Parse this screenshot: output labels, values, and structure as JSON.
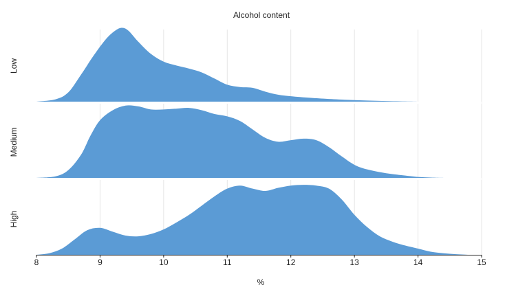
{
  "chart_data": {
    "type": "area",
    "title": "Alcohol content",
    "xlabel": "%",
    "ylabel": "",
    "xlim": [
      8,
      15
    ],
    "x_ticks": [
      8,
      9,
      10,
      11,
      12,
      13,
      14,
      15
    ],
    "x_tick_labels": [
      "8",
      "9",
      "10",
      "11",
      "12",
      "13",
      "14",
      "15"
    ],
    "grid": true,
    "fill_color": "#5b9bd5",
    "rows": [
      "Low",
      "Medium",
      "High"
    ],
    "series": [
      {
        "name": "Low",
        "x": [
          8.0,
          8.3,
          8.5,
          8.7,
          8.9,
          9.1,
          9.25,
          9.35,
          9.45,
          9.6,
          9.8,
          10.0,
          10.2,
          10.4,
          10.6,
          10.8,
          11.0,
          11.2,
          11.4,
          11.6,
          11.8,
          12.0,
          12.3,
          12.6,
          13.0,
          13.4,
          13.8,
          14.0
        ],
        "y": [
          0.0,
          0.03,
          0.12,
          0.35,
          0.6,
          0.82,
          0.93,
          0.96,
          0.92,
          0.78,
          0.62,
          0.52,
          0.47,
          0.43,
          0.38,
          0.3,
          0.22,
          0.19,
          0.18,
          0.13,
          0.09,
          0.07,
          0.05,
          0.035,
          0.02,
          0.01,
          0.003,
          0.0
        ]
      },
      {
        "name": "Medium",
        "x": [
          8.0,
          8.3,
          8.5,
          8.7,
          8.85,
          9.0,
          9.2,
          9.4,
          9.6,
          9.8,
          10.0,
          10.2,
          10.4,
          10.6,
          10.8,
          11.0,
          11.2,
          11.4,
          11.6,
          11.8,
          12.0,
          12.2,
          12.4,
          12.6,
          12.8,
          13.0,
          13.2,
          13.5,
          13.8,
          14.0,
          14.2,
          14.4
        ],
        "y": [
          0.0,
          0.02,
          0.1,
          0.3,
          0.55,
          0.75,
          0.88,
          0.94,
          0.93,
          0.89,
          0.89,
          0.9,
          0.91,
          0.88,
          0.83,
          0.8,
          0.74,
          0.63,
          0.52,
          0.47,
          0.49,
          0.51,
          0.49,
          0.4,
          0.28,
          0.17,
          0.11,
          0.06,
          0.03,
          0.012,
          0.004,
          0.0
        ]
      },
      {
        "name": "High",
        "x": [
          8.0,
          8.2,
          8.4,
          8.6,
          8.8,
          9.0,
          9.2,
          9.4,
          9.6,
          9.8,
          10.0,
          10.2,
          10.4,
          10.6,
          10.8,
          11.0,
          11.2,
          11.4,
          11.6,
          11.8,
          12.0,
          12.2,
          12.4,
          12.6,
          12.8,
          13.0,
          13.2,
          13.4,
          13.6,
          13.8,
          14.0,
          14.2,
          14.4,
          14.6,
          14.8
        ],
        "y": [
          0.0,
          0.02,
          0.08,
          0.2,
          0.32,
          0.35,
          0.3,
          0.25,
          0.24,
          0.27,
          0.33,
          0.42,
          0.52,
          0.64,
          0.76,
          0.86,
          0.9,
          0.86,
          0.83,
          0.87,
          0.9,
          0.91,
          0.9,
          0.86,
          0.72,
          0.52,
          0.36,
          0.24,
          0.17,
          0.12,
          0.08,
          0.04,
          0.02,
          0.008,
          0.0
        ]
      }
    ]
  }
}
